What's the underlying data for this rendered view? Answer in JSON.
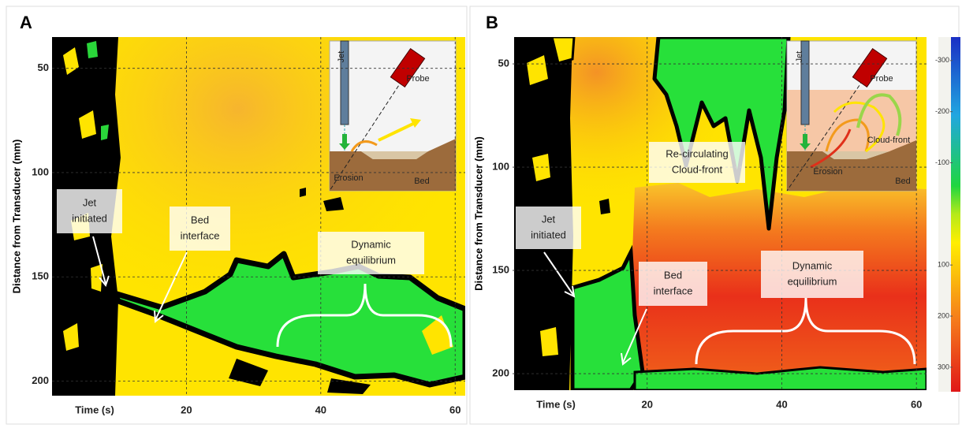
{
  "chart_data": [
    {
      "type": "heatmap",
      "panel": "A",
      "xlabel": "Time (s)",
      "ylabel": "Distance from Transducer (mm)",
      "xlim": [
        0,
        61.5
      ],
      "ylim": [
        35,
        207
      ],
      "xticks": [
        20,
        40,
        60
      ],
      "yticks": [
        50,
        100,
        150,
        200
      ],
      "grid": true,
      "annotations": [
        [
          "Jet",
          "initiated"
        ],
        [
          "Bed",
          "interface"
        ],
        [
          "Dynamic",
          "equilibrium"
        ]
      ],
      "inset_labels": [
        "Jet",
        "Probe",
        "Erosion",
        "Bed"
      ]
    },
    {
      "type": "heatmap",
      "panel": "B",
      "xlabel": "Time (s)",
      "ylabel": "Distance from Transducer (mm)",
      "xlim": [
        0,
        61.5
      ],
      "ylim": [
        37,
        208
      ],
      "xticks": [
        20,
        40,
        60
      ],
      "yticks": [
        50,
        100,
        150,
        200
      ],
      "grid": true,
      "annotations": [
        [
          "Re-circulating",
          "Cloud-front"
        ],
        [
          "Jet",
          "initiated"
        ],
        [
          "Bed",
          "interface"
        ],
        [
          "Dynamic",
          "equilibrium"
        ]
      ],
      "inset_labels": [
        "Jet",
        "Probe",
        "Cloud-front",
        "Erosion",
        "Bed"
      ],
      "colorbar": {
        "clim": [
          -346,
          348
        ],
        "ticks": [
          -300,
          -200,
          -100,
          100,
          200,
          300
        ]
      }
    }
  ]
}
